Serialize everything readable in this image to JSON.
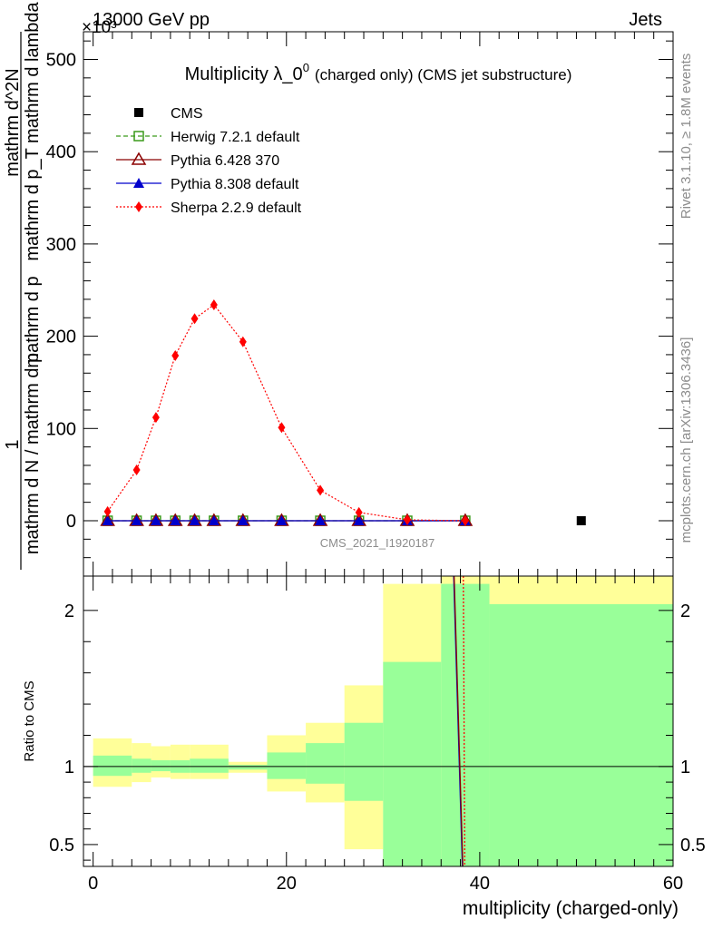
{
  "header": {
    "energy_label": "13000 GeV pp",
    "process_label": "Jets"
  },
  "side_text": {
    "rivet": "Rivet 3.1.10, ≥ 1.8M events",
    "mcplots": "mcplots.cern.ch [arXiv:1306.3436]"
  },
  "watermark": "CMS_2021_I1920187",
  "chart_data": [
    {
      "type": "line",
      "title": "Multiplicity λ_0",
      "title_sup": "0",
      "title_suffix": "(charged only) (CMS jet substructure)",
      "ylabel_frac_num": "1",
      "ylabel_frac_den": "mathrm d N / mathrm d p",
      "ylabel_lines": [
        "mathrm d p",
        "mathrm d p_T mathrm d lambda",
        "mathrm d^2N"
      ],
      "y_multiplier": "×10³",
      "xlim": [
        -1,
        60
      ],
      "ylim": [
        -60,
        530
      ],
      "yticks": [
        0,
        100,
        200,
        300,
        400,
        500
      ],
      "ytick_labels": [
        "0",
        "100",
        "200",
        "300",
        "400",
        "500"
      ],
      "legend_position": "top-left",
      "series": [
        {
          "name": "CMS",
          "color": "#000000",
          "points": [
            [
              50.5,
              0
            ]
          ]
        },
        {
          "name": "Herwig 7.2.1 default",
          "color": "#3a9a1a",
          "points": [
            [
              1.5,
              0
            ],
            [
              4.5,
              0
            ],
            [
              6.5,
              0
            ],
            [
              8.5,
              0
            ],
            [
              10.5,
              0
            ],
            [
              12.5,
              0
            ],
            [
              15.5,
              0
            ],
            [
              19.5,
              0
            ],
            [
              23.5,
              0
            ],
            [
              27.5,
              0
            ],
            [
              32.5,
              0
            ],
            [
              38.5,
              0
            ]
          ]
        },
        {
          "name": "Pythia 6.428 370",
          "color": "#8b0000",
          "points": [
            [
              1.5,
              0
            ],
            [
              4.5,
              0
            ],
            [
              6.5,
              0
            ],
            [
              8.5,
              0
            ],
            [
              10.5,
              0
            ],
            [
              12.5,
              0
            ],
            [
              15.5,
              0
            ],
            [
              19.5,
              0
            ],
            [
              23.5,
              0
            ],
            [
              27.5,
              0
            ],
            [
              32.5,
              0
            ],
            [
              38.5,
              0
            ]
          ]
        },
        {
          "name": "Pythia 8.308 default",
          "color": "#0000cc",
          "points": [
            [
              1.5,
              0
            ],
            [
              4.5,
              0
            ],
            [
              6.5,
              0
            ],
            [
              8.5,
              0
            ],
            [
              10.5,
              0
            ],
            [
              12.5,
              0
            ],
            [
              15.5,
              0
            ],
            [
              19.5,
              0
            ],
            [
              23.5,
              0
            ],
            [
              27.5,
              0
            ],
            [
              32.5,
              0
            ],
            [
              38.5,
              0
            ]
          ]
        },
        {
          "name": "Sherpa 2.2.9 default",
          "color": "#ff0000",
          "points": [
            [
              1.5,
              10
            ],
            [
              4.5,
              55
            ],
            [
              6.5,
              112
            ],
            [
              8.5,
              179
            ],
            [
              10.5,
              219
            ],
            [
              12.5,
              234
            ],
            [
              15.5,
              194
            ],
            [
              19.5,
              101
            ],
            [
              23.5,
              33
            ],
            [
              27.5,
              9
            ],
            [
              32.5,
              1
            ],
            [
              38.5,
              0
            ]
          ]
        }
      ]
    },
    {
      "type": "area",
      "xlabel": "multiplicity (charged-only)",
      "ylabel": "Ratio to CMS",
      "xlim": [
        -1,
        60
      ],
      "ylim": [
        0.36,
        2.22
      ],
      "xticks": [
        0,
        20,
        40,
        60
      ],
      "xtick_labels": [
        "0",
        "20",
        "40",
        "60"
      ],
      "yticks": [
        0.5,
        1,
        2
      ],
      "ytick_labels": [
        "0.5",
        "1",
        "2"
      ],
      "bins": [
        {
          "x0": 0,
          "x1": 4,
          "yellow": [
            0.87,
            1.18
          ],
          "green": [
            0.94,
            1.07
          ]
        },
        {
          "x0": 4,
          "x1": 6,
          "yellow": [
            0.9,
            1.15
          ],
          "green": [
            0.96,
            1.05
          ]
        },
        {
          "x0": 6,
          "x1": 8,
          "yellow": [
            0.93,
            1.13
          ],
          "green": [
            0.97,
            1.04
          ]
        },
        {
          "x0": 8,
          "x1": 10,
          "yellow": [
            0.92,
            1.14
          ],
          "green": [
            0.96,
            1.04
          ]
        },
        {
          "x0": 10,
          "x1": 14,
          "yellow": [
            0.92,
            1.14
          ],
          "green": [
            0.96,
            1.05
          ]
        },
        {
          "x0": 14,
          "x1": 18,
          "yellow": [
            0.96,
            1.03
          ],
          "green": [
            0.98,
            1.01
          ]
        },
        {
          "x0": 18,
          "x1": 22,
          "yellow": [
            0.84,
            1.2
          ],
          "green": [
            0.92,
            1.09
          ]
        },
        {
          "x0": 22,
          "x1": 26,
          "yellow": [
            0.77,
            1.28
          ],
          "green": [
            0.89,
            1.15
          ]
        },
        {
          "x0": 26,
          "x1": 30,
          "yellow": [
            0.47,
            1.52
          ],
          "green": [
            0.78,
            1.28
          ]
        },
        {
          "x0": 30,
          "x1": 36,
          "yellow": [
            0.36,
            2.17
          ],
          "green": [
            0.36,
            1.67
          ]
        },
        {
          "x0": 36,
          "x1": 41,
          "yellow": [
            0.36,
            2.22
          ],
          "green": [
            0.36,
            2.17
          ]
        },
        {
          "x0": 41,
          "x1": 60,
          "yellow": [
            0.36,
            2.22
          ],
          "green": [
            0.36,
            2.04
          ]
        }
      ],
      "series": [
        {
          "name": "Pythia 8.308 default",
          "color": "#0000cc",
          "points": [
            [
              37.3,
              2.22
            ],
            [
              38.2,
              0.36
            ]
          ]
        },
        {
          "name": "Pythia 6.428 370",
          "color": "#8b0000",
          "points": [
            [
              37.35,
              2.22
            ],
            [
              38.25,
              0.36
            ]
          ]
        },
        {
          "name": "Sherpa 2.2.9 default",
          "color": "#ff0000",
          "points": [
            [
              38.3,
              2.22
            ],
            [
              38.45,
              0.36
            ]
          ]
        }
      ]
    }
  ]
}
